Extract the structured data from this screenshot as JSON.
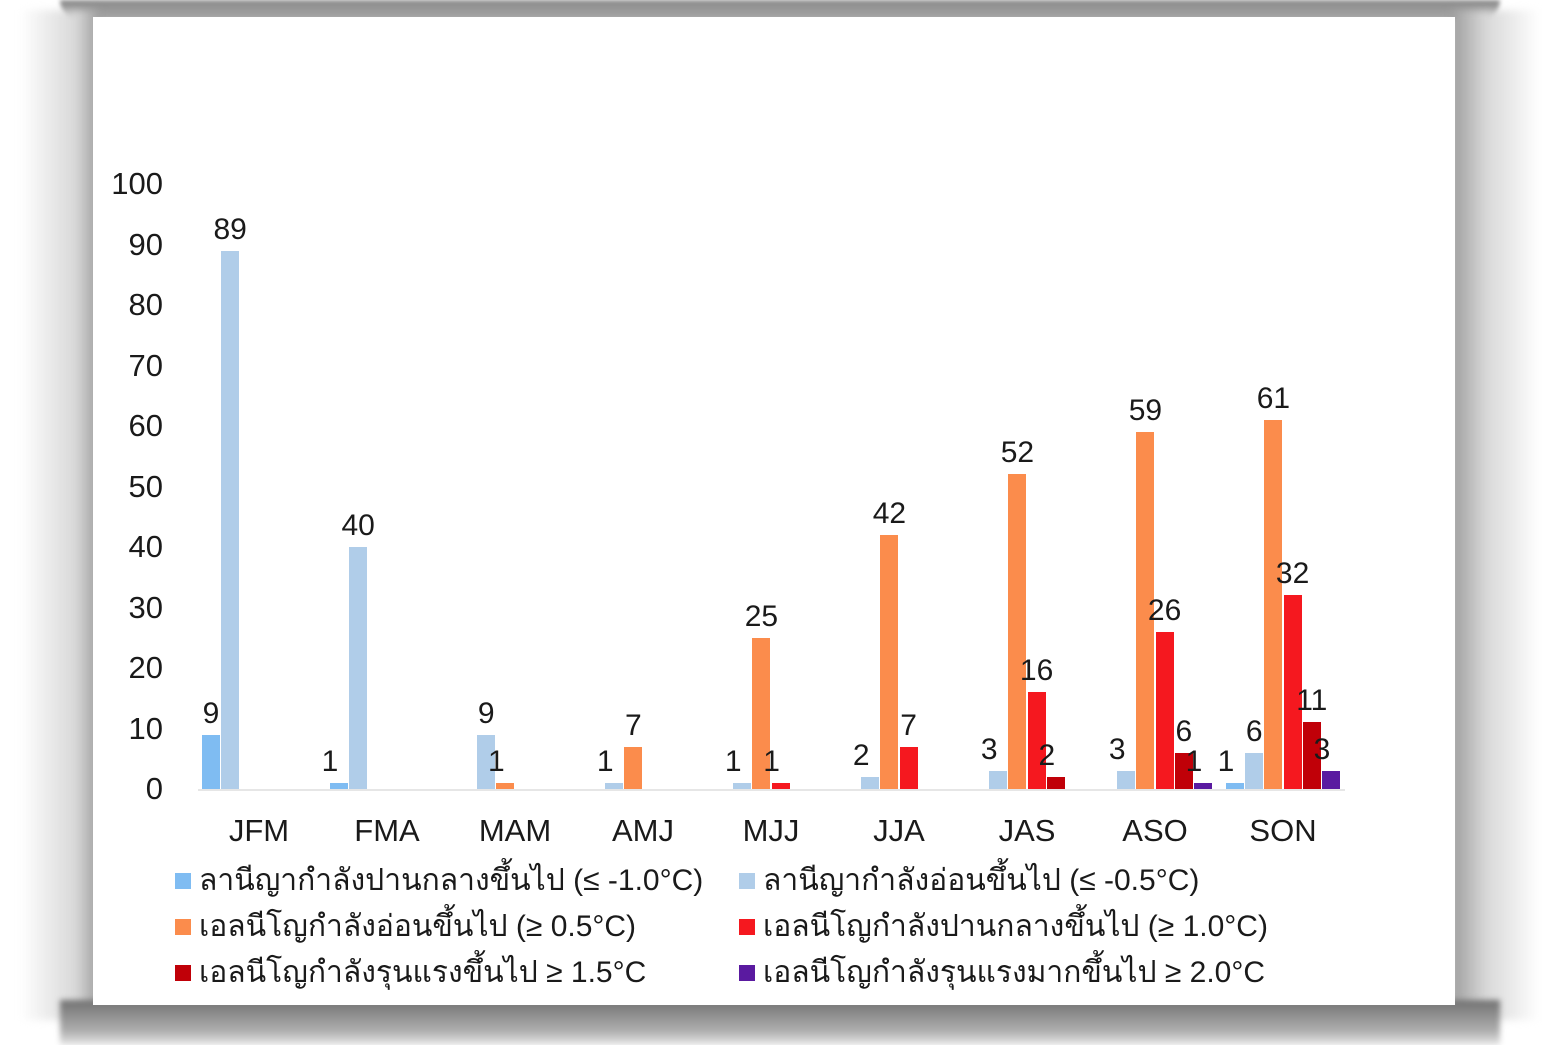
{
  "chart_data": {
    "type": "bar",
    "title": "",
    "xlabel": "",
    "ylabel": "",
    "ylim": [
      0,
      100
    ],
    "yticks": [
      0,
      10,
      20,
      30,
      40,
      50,
      60,
      70,
      80,
      90,
      100
    ],
    "grid": false,
    "legend_position": "bottom",
    "categories": [
      "JFM",
      "FMA",
      "MAM",
      "AMJ",
      "MJJ",
      "JJA",
      "JAS",
      "ASO",
      "SON"
    ],
    "series": [
      {
        "name": "ลานีญากำลังปานกลางขึ้นไป (≤ -1.0°C)",
        "color": "#7fbcf2",
        "values": [
          9,
          1,
          0,
          0,
          0,
          0,
          0,
          0,
          1
        ]
      },
      {
        "name": "ลานีญากำลังอ่อนขึ้นไป (≤ -0.5°C)",
        "color": "#b0cde9",
        "values": [
          89,
          40,
          9,
          1,
          1,
          2,
          3,
          3,
          6
        ]
      },
      {
        "name": "เอลนีโญกำลังอ่อนขึ้นไป (≥ 0.5°C)",
        "color": "#fb8c4c",
        "values": [
          0,
          0,
          1,
          7,
          25,
          42,
          52,
          59,
          61
        ]
      },
      {
        "name": "เอลนีโญกำลังปานกลางขึ้นไป (≥ 1.0°C)",
        "color": "#f5181f",
        "values": [
          0,
          0,
          0,
          0,
          1,
          7,
          16,
          26,
          32
        ]
      },
      {
        "name": "เอลนีโญกำลังรุนแรงขึ้นไป ≥ 1.5°C",
        "color": "#c00008",
        "values": [
          0,
          0,
          0,
          0,
          0,
          0,
          2,
          6,
          11
        ]
      },
      {
        "name": "เอลนีโญกำลังรุนแรงมากขึ้นไป ≥ 2.0°C",
        "color": "#5a1aa0",
        "values": [
          0,
          0,
          0,
          0,
          0,
          0,
          0,
          1,
          3
        ]
      }
    ]
  }
}
